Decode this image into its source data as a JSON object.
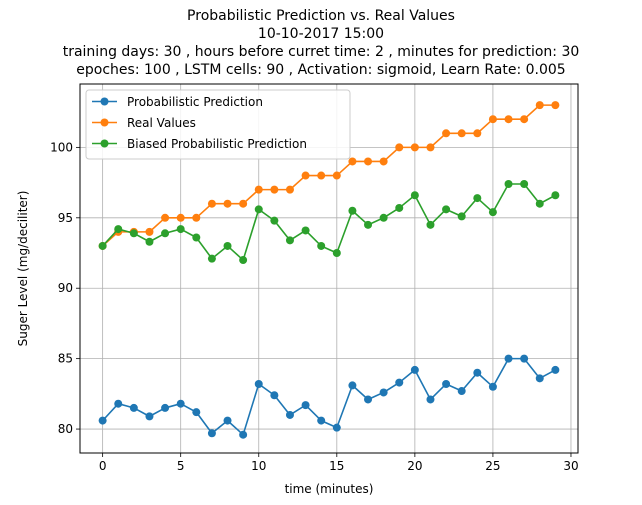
{
  "chart_data": {
    "type": "line",
    "title_lines": [
      "Probabilistic Prediction vs. Real Values",
      "10-10-2017 15:00",
      "training days: 30 , hours before curret time: 2 , minutes for prediction: 30",
      "epoches: 100 , LSTM cells: 90 , Activation: sigmoid, Learn Rate: 0.005"
    ],
    "xlabel": "time (minutes)",
    "ylabel": "Suger Level (mg/deciliter)",
    "xlim": [
      -1.45,
      30.45
    ],
    "ylim": [
      78.3,
      104.5
    ],
    "x_ticks": [
      0,
      5,
      10,
      15,
      20,
      25,
      30
    ],
    "y_ticks": [
      80,
      85,
      90,
      95,
      100
    ],
    "grid": true,
    "legend_position": "top-left",
    "x": [
      0,
      1,
      2,
      3,
      4,
      5,
      6,
      7,
      8,
      9,
      10,
      11,
      12,
      13,
      14,
      15,
      16,
      17,
      18,
      19,
      20,
      21,
      22,
      23,
      24,
      25,
      26,
      27,
      28,
      29
    ],
    "series": [
      {
        "name": "Probabilistic Prediction",
        "color": "#1f77b4",
        "values": [
          80.6,
          81.8,
          81.5,
          80.9,
          81.5,
          81.8,
          81.2,
          79.7,
          80.6,
          79.6,
          83.2,
          82.4,
          81.0,
          81.7,
          80.6,
          80.1,
          83.1,
          82.1,
          82.6,
          83.3,
          84.2,
          82.1,
          83.2,
          82.7,
          84.0,
          83.0,
          85.0,
          85.0,
          83.6,
          84.2
        ]
      },
      {
        "name": "Real Values",
        "color": "#ff7f0e",
        "values": [
          93,
          94,
          94,
          94,
          95,
          95,
          95,
          96,
          96,
          96,
          97,
          97,
          97,
          98,
          98,
          98,
          99,
          99,
          99,
          100,
          100,
          100,
          101,
          101,
          101,
          102,
          102,
          102,
          103,
          103
        ]
      },
      {
        "name": "Biased Probabilistic Prediction",
        "color": "#2ca02c",
        "values": [
          93.0,
          94.2,
          93.9,
          93.3,
          93.9,
          94.2,
          93.6,
          92.1,
          93.0,
          92.0,
          95.6,
          94.8,
          93.4,
          94.1,
          93.0,
          92.5,
          95.5,
          94.5,
          95.0,
          95.7,
          96.6,
          94.5,
          95.6,
          95.1,
          96.4,
          95.4,
          97.4,
          97.4,
          96.0,
          96.6
        ]
      }
    ]
  }
}
